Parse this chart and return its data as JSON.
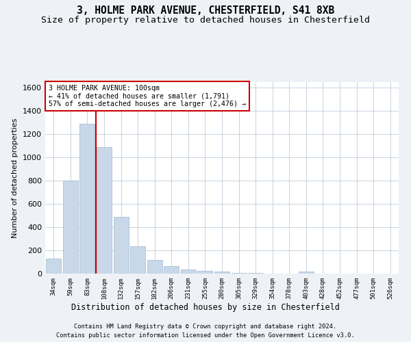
{
  "title1": "3, HOLME PARK AVENUE, CHESTERFIELD, S41 8XB",
  "title2": "Size of property relative to detached houses in Chesterfield",
  "xlabel": "Distribution of detached houses by size in Chesterfield",
  "ylabel": "Number of detached properties",
  "bin_labels": [
    "34sqm",
    "59sqm",
    "83sqm",
    "108sqm",
    "132sqm",
    "157sqm",
    "182sqm",
    "206sqm",
    "231sqm",
    "255sqm",
    "280sqm",
    "305sqm",
    "329sqm",
    "354sqm",
    "378sqm",
    "403sqm",
    "428sqm",
    "452sqm",
    "477sqm",
    "501sqm",
    "526sqm"
  ],
  "bar_values": [
    130,
    800,
    1290,
    1090,
    490,
    235,
    120,
    65,
    35,
    25,
    15,
    5,
    5,
    2,
    2,
    15,
    2,
    2,
    2,
    2,
    2
  ],
  "bar_color": "#c8d8e8",
  "bar_edge_color": "#a0b8d0",
  "vline_color": "#cc0000",
  "ylim": [
    0,
    1650
  ],
  "yticks": [
    0,
    200,
    400,
    600,
    800,
    1000,
    1200,
    1400,
    1600
  ],
  "annotation_title": "3 HOLME PARK AVENUE: 100sqm",
  "annotation_line2": "← 41% of detached houses are smaller (1,791)",
  "annotation_line3": "57% of semi-detached houses are larger (2,476) →",
  "annotation_box_color": "#ffffff",
  "annotation_box_edge": "#cc0000",
  "footnote1": "Contains HM Land Registry data © Crown copyright and database right 2024.",
  "footnote2": "Contains public sector information licensed under the Open Government Licence v3.0.",
  "bg_color": "#eef2f6",
  "plot_bg_color": "#ffffff",
  "grid_color": "#c0ccd8",
  "title_fontsize": 10.5,
  "subtitle_fontsize": 9.5
}
